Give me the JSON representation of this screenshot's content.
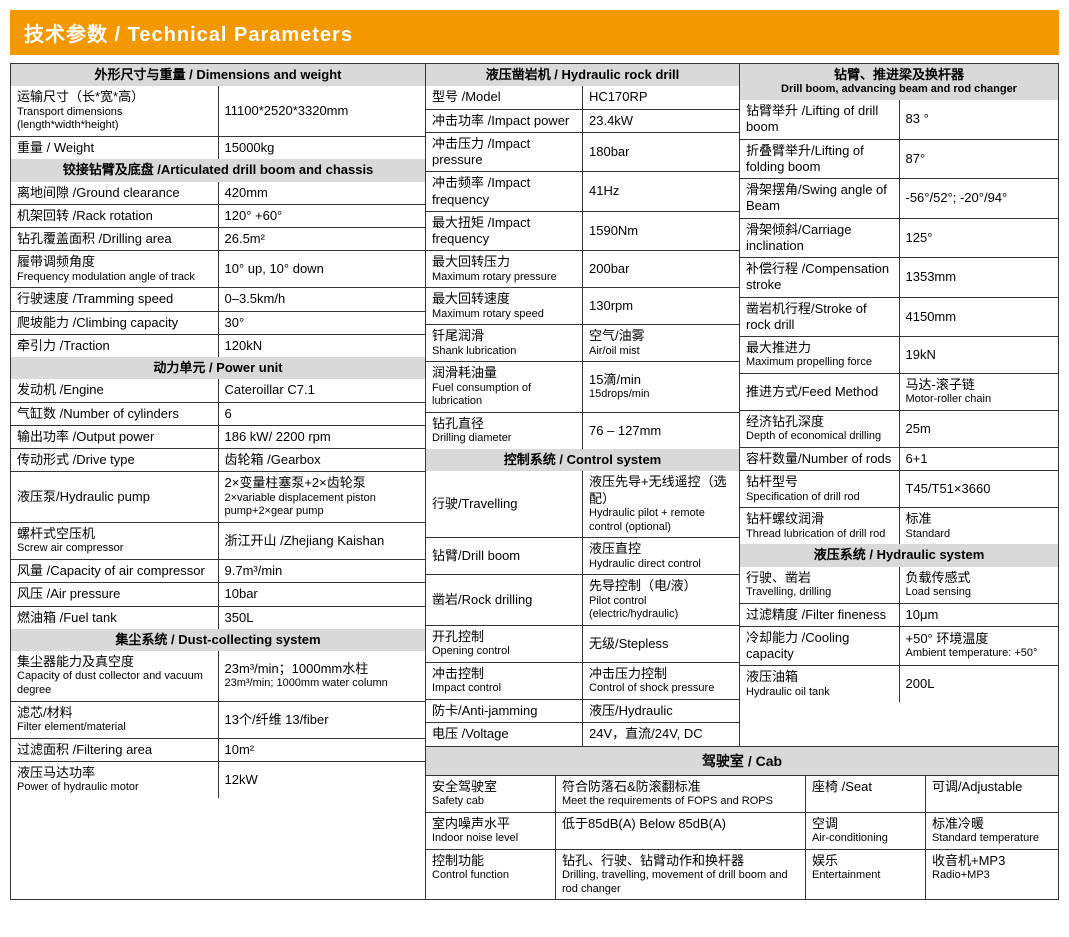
{
  "title": "技术参数 / Technical Parameters",
  "colors": {
    "accent": "#f39800",
    "header_bg": "#d9d9d9",
    "border": "#333333"
  },
  "col1": {
    "sec1": {
      "title": "外形尺寸与重量 / Dimensions and weight",
      "rows": [
        {
          "l": "运输尺寸（长*宽*高）",
          "s": "Transport dimensions (length*width*height)",
          "v": "11100*2520*3320mm"
        },
        {
          "l": "重量 / Weight",
          "s": "",
          "v": "15000kg"
        }
      ]
    },
    "sec2": {
      "title": "铰接钻臂及底盘 /Articulated drill boom and chassis",
      "rows": [
        {
          "l": "离地间隙 /Ground clearance",
          "s": "",
          "v": "420mm"
        },
        {
          "l": "机架回转 /Rack rotation",
          "s": "",
          "v": "120°  +60°"
        },
        {
          "l": "钻孔覆盖面积 /Drilling area",
          "s": "",
          "v": "26.5m²"
        },
        {
          "l": "履带调频角度",
          "s": "Frequency modulation angle of track",
          "v": "10° up, 10° down"
        },
        {
          "l": "行驶速度 /Tramming speed",
          "s": "",
          "v": "0–3.5km/h"
        },
        {
          "l": "爬坡能力 /Climbing capacity",
          "s": "",
          "v": "30°"
        },
        {
          "l": "牵引力 /Traction",
          "s": "",
          "v": "120kN"
        }
      ]
    },
    "sec3": {
      "title": "动力单元 / Power unit",
      "rows": [
        {
          "l": "发动机 /Engine",
          "s": "",
          "v": "Cateroillar C7.1"
        },
        {
          "l": "气缸数 /Number of cylinders",
          "s": "",
          "v": "6"
        },
        {
          "l": "输出功率 /Output power",
          "s": "",
          "v": "186 kW/ 2200 rpm"
        },
        {
          "l": "传动形式 /Drive type",
          "s": "",
          "v": "齿轮箱 /Gearbox"
        },
        {
          "l": "液压泵/Hydraulic pump",
          "s": "",
          "v": "2×变量柱塞泵+2×齿轮泵",
          "vs": "2×variable displacement piston pump+2×gear pump"
        },
        {
          "l": "螺杆式空压机",
          "s": "Screw air compressor",
          "v": "浙江开山 /Zhejiang Kaishan"
        },
        {
          "l": "风量 /Capacity of air compressor",
          "s": "",
          "v": "9.7m³/min"
        },
        {
          "l": "风压 /Air pressure",
          "s": "",
          "v": "10bar"
        },
        {
          "l": "燃油箱 /Fuel tank",
          "s": "",
          "v": "350L"
        }
      ]
    },
    "sec4": {
      "title": "集尘系统 / Dust-collecting system",
      "rows": [
        {
          "l": "集尘器能力及真空度",
          "s": "Capacity of dust collector and vacuum degree",
          "v": "23m³/min；1000mm水柱",
          "vs": "23m³/min; 1000mm water column"
        },
        {
          "l": "滤芯/材料",
          "s": "Filter element/material",
          "v": "13个/纤维 13/fiber"
        },
        {
          "l": "过滤面积 /Filtering area",
          "s": "",
          "v": "10m²"
        },
        {
          "l": "液压马达功率",
          "s": "Power of hydraulic motor",
          "v": "12kW"
        }
      ]
    }
  },
  "col2": {
    "sec1": {
      "title": "液压凿岩机 / Hydraulic rock drill",
      "rows": [
        {
          "l": "型号 /Model",
          "s": "",
          "v": "HC170RP"
        },
        {
          "l": "冲击功率 /Impact power",
          "s": "",
          "v": "23.4kW"
        },
        {
          "l": "冲击压力 /Impact pressure",
          "s": "",
          "v": "180bar"
        },
        {
          "l": "冲击频率 /Impact frequency",
          "s": "",
          "v": "41Hz"
        },
        {
          "l": "最大扭矩 /Impact frequency",
          "s": "",
          "v": "1590Nm"
        },
        {
          "l": "最大回转压力",
          "s": "Maximum rotary pressure",
          "v": "200bar"
        },
        {
          "l": "最大回转速度",
          "s": "Maximum rotary speed",
          "v": "130rpm"
        },
        {
          "l": "钎尾润滑",
          "s": "Shank lubrication",
          "v": "空气/油雾",
          "vs": "Air/oil mist"
        },
        {
          "l": "润滑耗油量",
          "s": "Fuel consumption of lubrication",
          "v": "15滴/min",
          "vs": "15drops/min"
        },
        {
          "l": "钻孔直径",
          "s": "Drilling diameter",
          "v": "76 – 127mm"
        }
      ]
    },
    "sec2": {
      "title": "控制系统 / Control system",
      "rows": [
        {
          "l": "行驶/Travelling",
          "s": "",
          "v": "液压先导+无线遥控（选配）",
          "vs": "Hydraulic pilot + remote control (optional)"
        },
        {
          "l": "钻臂/Drill boom",
          "s": "",
          "v": "液压直控",
          "vs": "Hydraulic direct control"
        },
        {
          "l": "凿岩/Rock drilling",
          "s": "",
          "v": "先导控制（电/液）",
          "vs": "Pilot control (electric/hydraulic)"
        },
        {
          "l": "开孔控制",
          "s": "Opening control",
          "v": "无级/Stepless"
        },
        {
          "l": "冲击控制",
          "s": "Impact control",
          "v": "冲击压力控制",
          "vs": "Control of shock pressure"
        },
        {
          "l": "防卡/Anti-jamming",
          "s": "",
          "v": "液压/Hydraulic"
        },
        {
          "l": "电压 /Voltage",
          "s": "",
          "v": "24V，直流/24V, DC"
        }
      ]
    }
  },
  "col3": {
    "sec1": {
      "title": "钻臂、推进梁及换杆器",
      "title_sub": "Drill boom, advancing beam and rod changer",
      "rows": [
        {
          "l": "钻臂举升 /Lifting of drill boom",
          "s": "",
          "v": "83 °"
        },
        {
          "l": "折叠臂举升/Lifting of folding boom",
          "s": "",
          "v": "87°"
        },
        {
          "l": "滑架摆角/Swing angle of Beam",
          "s": "",
          "v": "-56°/52°; -20°/94°"
        },
        {
          "l": "滑架倾斜/Carriage inclination",
          "s": "",
          "v": "125°"
        },
        {
          "l": "补偿行程 /Compensation stroke",
          "s": "",
          "v": "1353mm"
        },
        {
          "l": "凿岩机行程/Stroke of rock drill",
          "s": "",
          "v": "4150mm"
        },
        {
          "l": "最大推进力",
          "s": "Maximum propelling force",
          "v": "19kN"
        },
        {
          "l": "推进方式/Feed Method",
          "s": "",
          "v": "马达-滚子链",
          "vs": "Motor-roller chain"
        },
        {
          "l": "经济钻孔深度",
          "s": "Depth of economical drilling",
          "v": "25m"
        },
        {
          "l": "容杆数量/Number of rods",
          "s": "",
          "v": "6+1"
        },
        {
          "l": "钻杆型号",
          "s": "Specification of drill rod",
          "v": "T45/T51×3660"
        },
        {
          "l": "钻杆螺纹润滑",
          "s": "Thread lubrication of drill rod",
          "v": "标准",
          "vs": "Standard"
        }
      ]
    },
    "sec2": {
      "title": "液压系统 / Hydraulic system",
      "rows": [
        {
          "l": "行驶、凿岩",
          "s": "Travelling, drilling",
          "v": "负载传感式",
          "vs": "Load sensing"
        },
        {
          "l": "过滤精度 /Filter fineness",
          "s": "",
          "v": "10μm"
        },
        {
          "l": "冷却能力 /Cooling capacity",
          "s": "",
          "v": "+50° 环境温度",
          "vs": "Ambient temperature: +50°"
        },
        {
          "l": "液压油箱",
          "s": "Hydraulic oil tank",
          "v": "200L"
        }
      ]
    }
  },
  "cab": {
    "title": "驾驶室 / Cab",
    "rows": [
      {
        "c1l": "安全驾驶室",
        "c1s": "Safety cab",
        "c2": "符合防落石&防滚翻标准",
        "c2s": "Meet the requirements of FOPS and ROPS",
        "c3": "座椅 /Seat",
        "c4": "可调/Adjustable"
      },
      {
        "c1l": "室内噪声水平",
        "c1s": "Indoor noise level",
        "c2": "低于85dB(A) Below 85dB(A)",
        "c2s": "",
        "c3": "空调",
        "c3s": "Air-conditioning",
        "c4": "标准冷暖",
        "c4s": "Standard temperature"
      },
      {
        "c1l": "控制功能",
        "c1s": "Control function",
        "c2": "钻孔、行驶、钻臂动作和换杆器",
        "c2s": "Drilling, travelling, movement of drill boom and rod changer",
        "c3": "娱乐",
        "c3s": "Entertainment",
        "c4": "收音机+MP3",
        "c4s": "Radio+MP3"
      }
    ]
  }
}
